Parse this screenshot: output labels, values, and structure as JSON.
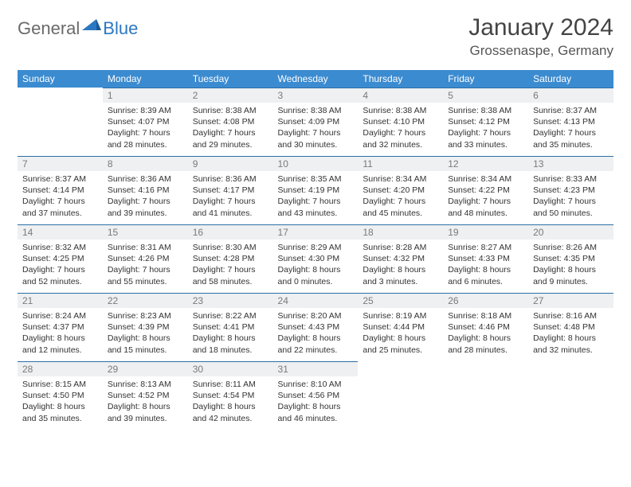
{
  "logo": {
    "part1": "General",
    "part2": "Blue"
  },
  "title": {
    "month": "January 2024",
    "location": "Grossenaspe, Germany"
  },
  "weekdays": [
    "Sunday",
    "Monday",
    "Tuesday",
    "Wednesday",
    "Thursday",
    "Friday",
    "Saturday"
  ],
  "colors": {
    "header_bg": "#3b8bd0",
    "header_text": "#ffffff",
    "daynum_bg": "#eef0f1",
    "daynum_text": "#7a7a7a",
    "row_border": "#2b6fa8",
    "logo_gray": "#6a6a6a",
    "logo_blue": "#2b78c2"
  },
  "layout": {
    "first_weekday_index": 1,
    "days_in_month": 31,
    "weeks": 5
  },
  "days": {
    "1": {
      "sunrise": "8:39 AM",
      "sunset": "4:07 PM",
      "daylight": "7 hours and 28 minutes."
    },
    "2": {
      "sunrise": "8:38 AM",
      "sunset": "4:08 PM",
      "daylight": "7 hours and 29 minutes."
    },
    "3": {
      "sunrise": "8:38 AM",
      "sunset": "4:09 PM",
      "daylight": "7 hours and 30 minutes."
    },
    "4": {
      "sunrise": "8:38 AM",
      "sunset": "4:10 PM",
      "daylight": "7 hours and 32 minutes."
    },
    "5": {
      "sunrise": "8:38 AM",
      "sunset": "4:12 PM",
      "daylight": "7 hours and 33 minutes."
    },
    "6": {
      "sunrise": "8:37 AM",
      "sunset": "4:13 PM",
      "daylight": "7 hours and 35 minutes."
    },
    "7": {
      "sunrise": "8:37 AM",
      "sunset": "4:14 PM",
      "daylight": "7 hours and 37 minutes."
    },
    "8": {
      "sunrise": "8:36 AM",
      "sunset": "4:16 PM",
      "daylight": "7 hours and 39 minutes."
    },
    "9": {
      "sunrise": "8:36 AM",
      "sunset": "4:17 PM",
      "daylight": "7 hours and 41 minutes."
    },
    "10": {
      "sunrise": "8:35 AM",
      "sunset": "4:19 PM",
      "daylight": "7 hours and 43 minutes."
    },
    "11": {
      "sunrise": "8:34 AM",
      "sunset": "4:20 PM",
      "daylight": "7 hours and 45 minutes."
    },
    "12": {
      "sunrise": "8:34 AM",
      "sunset": "4:22 PM",
      "daylight": "7 hours and 48 minutes."
    },
    "13": {
      "sunrise": "8:33 AM",
      "sunset": "4:23 PM",
      "daylight": "7 hours and 50 minutes."
    },
    "14": {
      "sunrise": "8:32 AM",
      "sunset": "4:25 PM",
      "daylight": "7 hours and 52 minutes."
    },
    "15": {
      "sunrise": "8:31 AM",
      "sunset": "4:26 PM",
      "daylight": "7 hours and 55 minutes."
    },
    "16": {
      "sunrise": "8:30 AM",
      "sunset": "4:28 PM",
      "daylight": "7 hours and 58 minutes."
    },
    "17": {
      "sunrise": "8:29 AM",
      "sunset": "4:30 PM",
      "daylight": "8 hours and 0 minutes."
    },
    "18": {
      "sunrise": "8:28 AM",
      "sunset": "4:32 PM",
      "daylight": "8 hours and 3 minutes."
    },
    "19": {
      "sunrise": "8:27 AM",
      "sunset": "4:33 PM",
      "daylight": "8 hours and 6 minutes."
    },
    "20": {
      "sunrise": "8:26 AM",
      "sunset": "4:35 PM",
      "daylight": "8 hours and 9 minutes."
    },
    "21": {
      "sunrise": "8:24 AM",
      "sunset": "4:37 PM",
      "daylight": "8 hours and 12 minutes."
    },
    "22": {
      "sunrise": "8:23 AM",
      "sunset": "4:39 PM",
      "daylight": "8 hours and 15 minutes."
    },
    "23": {
      "sunrise": "8:22 AM",
      "sunset": "4:41 PM",
      "daylight": "8 hours and 18 minutes."
    },
    "24": {
      "sunrise": "8:20 AM",
      "sunset": "4:43 PM",
      "daylight": "8 hours and 22 minutes."
    },
    "25": {
      "sunrise": "8:19 AM",
      "sunset": "4:44 PM",
      "daylight": "8 hours and 25 minutes."
    },
    "26": {
      "sunrise": "8:18 AM",
      "sunset": "4:46 PM",
      "daylight": "8 hours and 28 minutes."
    },
    "27": {
      "sunrise": "8:16 AM",
      "sunset": "4:48 PM",
      "daylight": "8 hours and 32 minutes."
    },
    "28": {
      "sunrise": "8:15 AM",
      "sunset": "4:50 PM",
      "daylight": "8 hours and 35 minutes."
    },
    "29": {
      "sunrise": "8:13 AM",
      "sunset": "4:52 PM",
      "daylight": "8 hours and 39 minutes."
    },
    "30": {
      "sunrise": "8:11 AM",
      "sunset": "4:54 PM",
      "daylight": "8 hours and 42 minutes."
    },
    "31": {
      "sunrise": "8:10 AM",
      "sunset": "4:56 PM",
      "daylight": "8 hours and 46 minutes."
    }
  },
  "labels": {
    "sunrise": "Sunrise:",
    "sunset": "Sunset:",
    "daylight": "Daylight:"
  }
}
